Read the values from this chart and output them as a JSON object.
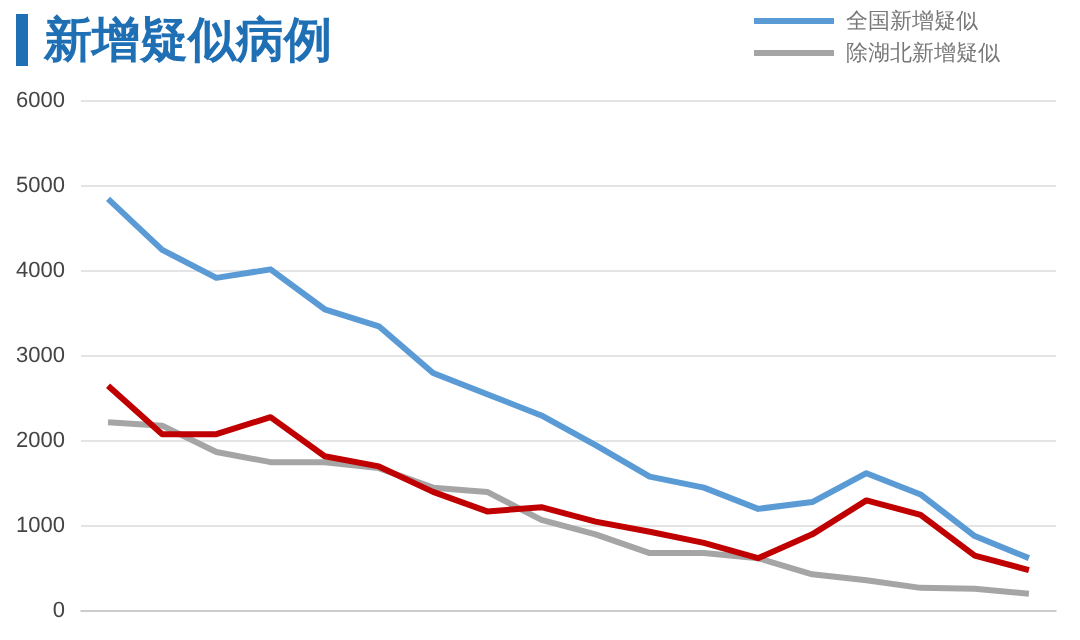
{
  "chart_data": {
    "type": "line",
    "title": "新增疑似病例",
    "categories": [
      null,
      null,
      null,
      null,
      null,
      null,
      null,
      null,
      null,
      null,
      null,
      null,
      null,
      null,
      null,
      null,
      null,
      null
    ],
    "series": [
      {
        "name": "全国新增疑似",
        "color": "#5b9bd5",
        "values": [
          4850,
          4250,
          3920,
          4020,
          3550,
          3350,
          2800,
          2550,
          2300,
          1950,
          1580,
          1450,
          1200,
          1280,
          1620,
          1370,
          880,
          620
        ]
      },
      {
        "color": "#c00000",
        "values": [
          2650,
          2080,
          2080,
          2280,
          1820,
          1700,
          1400,
          1170,
          1220,
          1050,
          930,
          800,
          620,
          900,
          1300,
          1130,
          650,
          480
        ]
      },
      {
        "name": "除湖北新增疑似",
        "color": "#a5a5a5",
        "values": [
          2220,
          2180,
          1870,
          1750,
          1750,
          1680,
          1450,
          1400,
          1070,
          900,
          680,
          680,
          620,
          430,
          360,
          270,
          260,
          200
        ]
      }
    ],
    "ylim": [
      0,
      6000
    ],
    "yticks": [
      0,
      1000,
      2000,
      3000,
      4000,
      5000,
      6000
    ],
    "grid": "y",
    "legend": "top right",
    "tick_labels": "y",
    "marker": "none",
    "line_style": "solid"
  }
}
